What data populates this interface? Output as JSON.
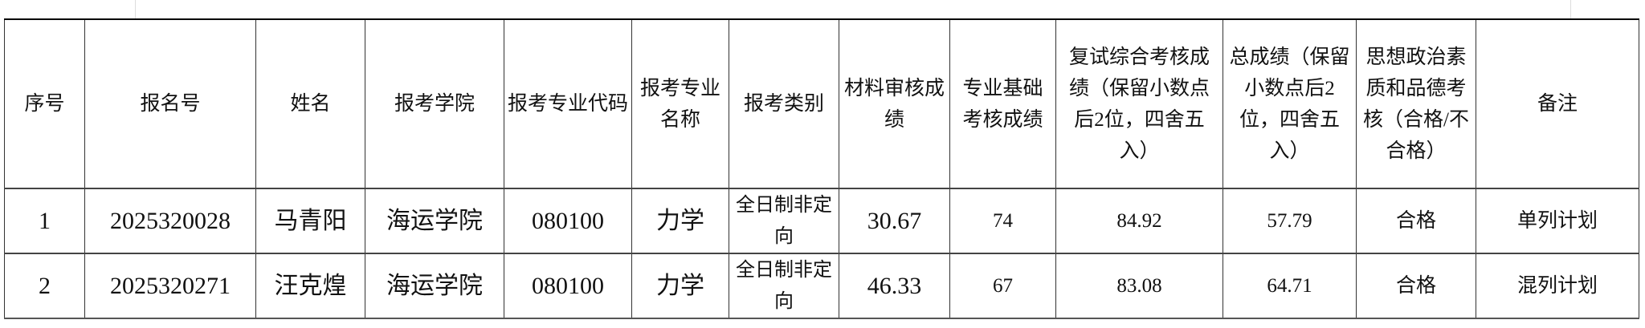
{
  "table": {
    "headers": [
      "序号",
      "报名号",
      "姓名",
      "报考学院",
      "报考专业代码",
      "报考专业名称",
      "报考类别",
      "材料审核成绩",
      "专业基础考核成绩",
      "复试综合考核成绩（保留小数点后2位，四舍五入）",
      "总成绩（保留小数点后2位，四舍五入）",
      "思想政治素质和品德考核（合格/不合格）",
      "备注"
    ],
    "rows": [
      [
        "1",
        "2025320028",
        "马青阳",
        "海运学院",
        "080100",
        "力学",
        "全日制非定向",
        "30.67",
        "74",
        "84.92",
        "57.79",
        "合格",
        "单列计划"
      ],
      [
        "2",
        "2025320271",
        "汪克煌",
        "海运学院",
        "080100",
        "力学",
        "全日制非定向",
        "46.33",
        "67",
        "83.08",
        "64.71",
        "合格",
        "混列计划"
      ]
    ]
  }
}
